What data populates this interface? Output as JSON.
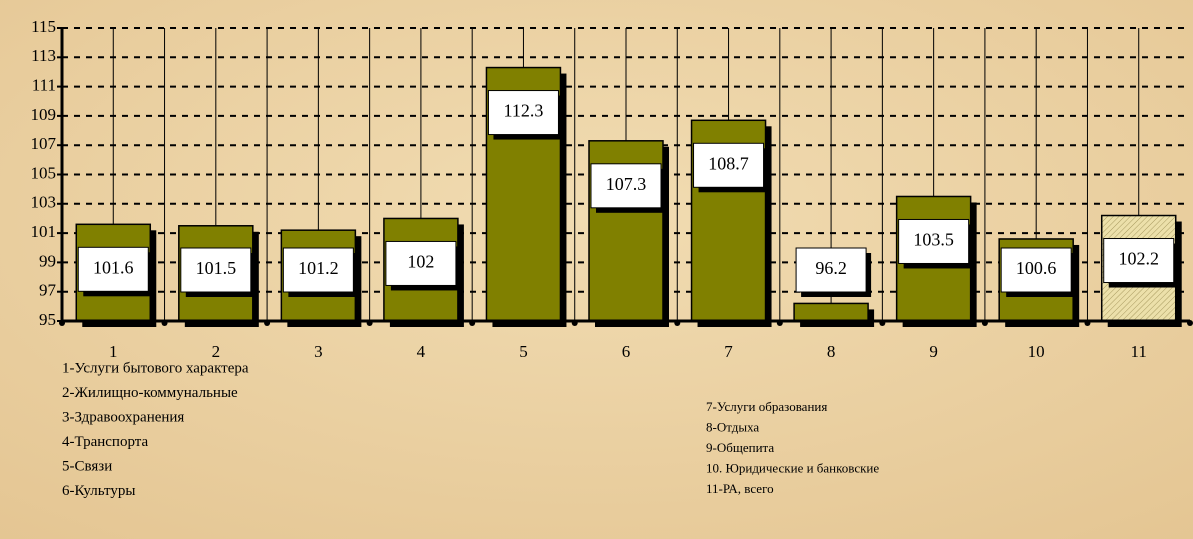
{
  "chart_data": {
    "type": "bar",
    "categories": [
      "1",
      "2",
      "3",
      "4",
      "5",
      "6",
      "7",
      "8",
      "9",
      "10",
      "11"
    ],
    "values": [
      101.6,
      101.5,
      101.2,
      102,
      112.3,
      107.3,
      108.7,
      96.2,
      103.5,
      100.6,
      102.2
    ],
    "colors": [
      "#808000",
      "#808000",
      "#808000",
      "#808000",
      "#808000",
      "#808000",
      "#808000",
      "#808000",
      "#808000",
      "#808000",
      "#e6d9a0"
    ],
    "ylim": [
      95,
      115
    ],
    "yticks": [
      95,
      97,
      99,
      101,
      103,
      105,
      107,
      109,
      111,
      113,
      115
    ],
    "grid": true,
    "notes_left": [
      "1-Услуги бытового характера",
      "2-Жилищно-коммунальные",
      "3-Здравоохранения",
      "4-Транспорта",
      "5-Связи",
      "6-Культуры"
    ],
    "notes_right": [
      "7-Услуги образования",
      "8-Отдыха",
      "9-Общепита",
      "10. Юридические и банковские",
      "11-РА, всего"
    ]
  }
}
